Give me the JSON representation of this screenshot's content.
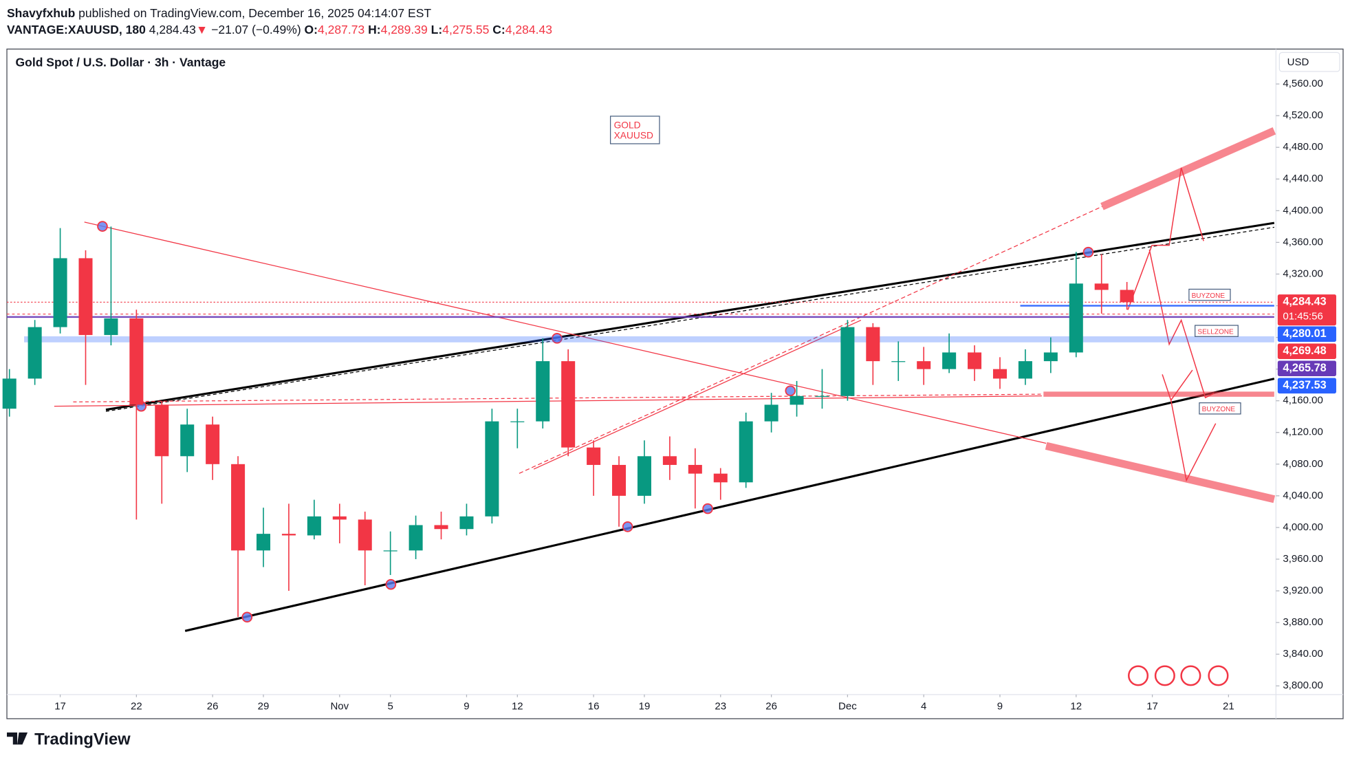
{
  "header": {
    "publisher": "Shavyfxhub",
    "published": "published on TradingView.com, December 16, 2025 04:14:07 EST",
    "symbol": "VANTAGE:XAUUSD, 180",
    "last": "4,284.43",
    "arrow": "▼",
    "change": "−21.07 (−0.49%)",
    "ohlc": [
      {
        "key": "O:",
        "value": "4,287.73"
      },
      {
        "key": "H:",
        "value": "4,289.39"
      },
      {
        "key": "L:",
        "value": "4,275.55"
      },
      {
        "key": "C:",
        "value": "4,284.43"
      }
    ]
  },
  "footer": {
    "brand": "TradingView"
  },
  "chart_data": {
    "type": "candlestick",
    "title": "Gold Spot / U.S. Dollar · 3h · Vantage",
    "currency": "USD",
    "annotations": [
      "GOLD",
      "XAUUSD",
      "BUYZONE",
      "SELLZONE",
      "BUYZONE"
    ],
    "x": [
      -2,
      -1,
      0,
      1,
      2,
      3,
      4,
      5,
      6,
      7,
      8,
      9,
      10,
      11,
      12,
      13,
      14,
      15,
      16,
      17,
      18,
      19,
      20,
      21,
      22,
      23,
      24,
      25,
      26,
      27,
      28,
      29,
      30,
      31,
      32,
      33,
      34,
      35,
      36,
      37,
      38,
      39,
      40,
      41,
      42
    ],
    "open": [
      4150,
      4188,
      4253,
      4340,
      4243,
      4264,
      4155,
      4090,
      4130,
      4080,
      3971,
      3992,
      3990,
      4014,
      4010,
      3971,
      3971,
      4003,
      3998,
      4014,
      4134,
      4134,
      4210,
      4101,
      4079,
      4040,
      4090,
      4079,
      4068,
      4057,
      4134,
      4155,
      4166,
      4166,
      4253,
      4210,
      4210,
      4200,
      4221,
      4200,
      4188,
      4210,
      4221,
      4308,
      4300
    ],
    "high": [
      4200,
      4262,
      4378,
      4350,
      4380,
      4275,
      4160,
      4150,
      4140,
      4090,
      4025,
      4030,
      4035,
      4030,
      4020,
      3995,
      4015,
      4020,
      4030,
      4150,
      4150,
      4239,
      4225,
      4110,
      4090,
      4110,
      4115,
      4100,
      4075,
      4145,
      4170,
      4185,
      4200,
      4262,
      4258,
      4235,
      4228,
      4245,
      4230,
      4215,
      4225,
      4240,
      4348,
      4345,
      4310
    ],
    "low": [
      4140,
      4180,
      4245,
      4180,
      4230,
      4010,
      4030,
      4070,
      4060,
      3887,
      3950,
      3920,
      3985,
      3980,
      3927,
      3940,
      3960,
      3985,
      3990,
      4005,
      4100,
      4125,
      4090,
      4040,
      4001,
      4030,
      4060,
      4024,
      4035,
      4050,
      4120,
      4140,
      4150,
      4160,
      4180,
      4185,
      4180,
      4195,
      4185,
      4175,
      4180,
      4195,
      4215,
      4270,
      4275
    ],
    "close": [
      4188,
      4253,
      4340,
      4243,
      4264,
      4155,
      4090,
      4130,
      4080,
      3971,
      3992,
      3990,
      4014,
      4010,
      3971,
      3971,
      4003,
      3998,
      4014,
      4134,
      4134,
      4210,
      4101,
      4079,
      4040,
      4090,
      4079,
      4068,
      4057,
      4134,
      4155,
      4166,
      4166,
      4253,
      4210,
      4210,
      4200,
      4221,
      4200,
      4188,
      4210,
      4221,
      4308,
      4300,
      4284.43
    ],
    "up_color": "#089981",
    "down_color": "#f23645",
    "xlim": [
      -2.1,
      47.8
    ],
    "xticks": [
      {
        "value": 0,
        "label": "17"
      },
      {
        "value": 3,
        "label": "22"
      },
      {
        "value": 6,
        "label": "26"
      },
      {
        "value": 8,
        "label": "29"
      },
      {
        "value": 11,
        "label": "Nov"
      },
      {
        "value": 13,
        "label": "5"
      },
      {
        "value": 16,
        "label": "9"
      },
      {
        "value": 18,
        "label": "12"
      },
      {
        "value": 21,
        "label": "16"
      },
      {
        "value": 23,
        "label": "19"
      },
      {
        "value": 26,
        "label": "23"
      },
      {
        "value": 28,
        "label": "26"
      },
      {
        "value": 31,
        "label": "Dec"
      },
      {
        "value": 34,
        "label": "4"
      },
      {
        "value": 37,
        "label": "9"
      },
      {
        "value": 40,
        "label": "12"
      },
      {
        "value": 43,
        "label": "17"
      },
      {
        "value": 46,
        "label": "21"
      }
    ],
    "ylim": [
      3789,
      4603
    ],
    "yticks": [
      {
        "value": 3800,
        "label": "3,800.00"
      },
      {
        "value": 3840,
        "label": "3,840.00"
      },
      {
        "value": 3880,
        "label": "3,880.00"
      },
      {
        "value": 3920,
        "label": "3,920.00"
      },
      {
        "value": 3960,
        "label": "3,960.00"
      },
      {
        "value": 4000,
        "label": "4,000.00"
      },
      {
        "value": 4040,
        "label": "4,040.00"
      },
      {
        "value": 4080,
        "label": "4,080.00"
      },
      {
        "value": 4120,
        "label": "4,120.00"
      },
      {
        "value": 4160,
        "label": "4,160.00"
      },
      {
        "value": 4200,
        "label": "4,200.00"
      },
      {
        "value": 4240,
        "label": "4,240.00"
      },
      {
        "value": 4280,
        "label": "4,280.00"
      },
      {
        "value": 4320,
        "label": "4,320.00"
      },
      {
        "value": 4360,
        "label": "4,360.00"
      },
      {
        "value": 4400,
        "label": "4,400.00"
      },
      {
        "value": 4440,
        "label": "4,440.00"
      },
      {
        "value": 4480,
        "label": "4,480.00"
      },
      {
        "value": 4520,
        "label": "4,520.00"
      },
      {
        "value": 4560,
        "label": "4,560.00"
      }
    ],
    "grid": false,
    "countdown": "01:45:56",
    "price_labels": [
      {
        "value": 4284.43,
        "label": "4,284.43",
        "color": "#f23645"
      },
      {
        "value": 4280.01,
        "label": "4,280.01",
        "color": "#2962ff"
      },
      {
        "value": 4269.48,
        "label": "4,269.48",
        "color": "#f23645"
      },
      {
        "value": 4265.78,
        "label": "4,265.78",
        "color": "#673ab7"
      },
      {
        "value": 4237.53,
        "label": "4,237.53",
        "color": "#2962ff"
      }
    ]
  }
}
